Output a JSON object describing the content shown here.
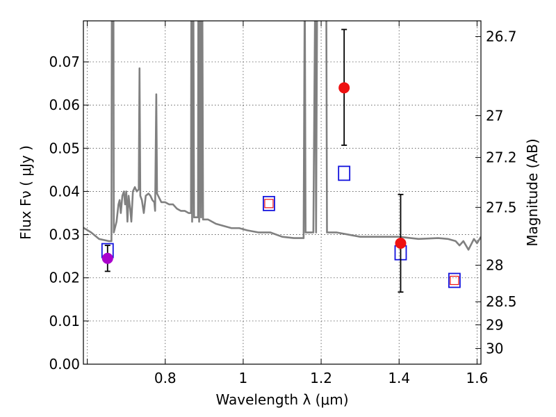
{
  "chart_data": {
    "type": "scatter",
    "xlabel": "Wavelength  λ (μm)",
    "ylabel": "Flux  Fν  ( μJy )",
    "ylabel_right": "Magnitude (AB)",
    "xlim": [
      0.59,
      1.61
    ],
    "ylim": [
      0.0,
      0.0795
    ],
    "grid": true,
    "x_ticks": [
      {
        "value": 0.6,
        "label": ""
      },
      {
        "value": 0.8,
        "label": "0.8"
      },
      {
        "value": 1.0,
        "label": "1"
      },
      {
        "value": 1.2,
        "label": "1.2"
      },
      {
        "value": 1.4,
        "label": "1.4"
      },
      {
        "value": 1.6,
        "label": "1.6"
      }
    ],
    "y_ticks": [
      {
        "value": 0.0,
        "label": "0.00"
      },
      {
        "value": 0.01,
        "label": "0.01"
      },
      {
        "value": 0.02,
        "label": "0.02"
      },
      {
        "value": 0.03,
        "label": "0.03"
      },
      {
        "value": 0.04,
        "label": "0.04"
      },
      {
        "value": 0.05,
        "label": "0.05"
      },
      {
        "value": 0.06,
        "label": "0.06"
      },
      {
        "value": 0.07,
        "label": "0.07"
      }
    ],
    "right_ticks": [
      {
        "mag": 26.7,
        "label": "26.7"
      },
      {
        "mag": 27.0,
        "label": "27"
      },
      {
        "mag": 27.2,
        "label": "27.2"
      },
      {
        "mag": 27.5,
        "label": "27.5"
      },
      {
        "mag": 28.0,
        "label": "28"
      },
      {
        "mag": 28.5,
        "label": "28.5"
      },
      {
        "mag": 29.0,
        "label": "29"
      },
      {
        "mag": 30.0,
        "label": "30"
      }
    ],
    "template_spectrum": {
      "color": "#808080",
      "points": [
        [
          0.59,
          0.0316
        ],
        [
          0.61,
          0.0305
        ],
        [
          0.63,
          0.029
        ],
        [
          0.655,
          0.0285
        ],
        [
          0.662,
          0.0285
        ],
        [
          0.663,
          0.09
        ],
        [
          0.667,
          0.09
        ],
        [
          0.668,
          0.0305
        ],
        [
          0.675,
          0.033
        ],
        [
          0.68,
          0.037
        ],
        [
          0.683,
          0.038
        ],
        [
          0.686,
          0.035
        ],
        [
          0.69,
          0.039
        ],
        [
          0.694,
          0.04
        ],
        [
          0.697,
          0.037
        ],
        [
          0.7,
          0.04
        ],
        [
          0.703,
          0.033
        ],
        [
          0.706,
          0.039
        ],
        [
          0.71,
          0.036
        ],
        [
          0.713,
          0.033
        ],
        [
          0.717,
          0.04
        ],
        [
          0.722,
          0.041
        ],
        [
          0.727,
          0.04
        ],
        [
          0.732,
          0.0405
        ],
        [
          0.734,
          0.0685
        ],
        [
          0.736,
          0.039
        ],
        [
          0.74,
          0.038
        ],
        [
          0.745,
          0.035
        ],
        [
          0.75,
          0.039
        ],
        [
          0.757,
          0.0395
        ],
        [
          0.762,
          0.039
        ],
        [
          0.767,
          0.038
        ],
        [
          0.772,
          0.0375
        ],
        [
          0.774,
          0.0355
        ],
        [
          0.777,
          0.0625
        ],
        [
          0.779,
          0.0395
        ],
        [
          0.79,
          0.0375
        ],
        [
          0.8,
          0.0375
        ],
        [
          0.81,
          0.037
        ],
        [
          0.82,
          0.037
        ],
        [
          0.83,
          0.036
        ],
        [
          0.84,
          0.0355
        ],
        [
          0.85,
          0.0355
        ],
        [
          0.86,
          0.035
        ],
        [
          0.866,
          0.035
        ],
        [
          0.867,
          0.09
        ],
        [
          0.869,
          0.033
        ],
        [
          0.872,
          0.09
        ],
        [
          0.874,
          0.034
        ],
        [
          0.884,
          0.034
        ],
        [
          0.885,
          0.09
        ],
        [
          0.887,
          0.033
        ],
        [
          0.89,
          0.09
        ],
        [
          0.892,
          0.034
        ],
        [
          0.895,
          0.09
        ],
        [
          0.897,
          0.0335
        ],
        [
          0.91,
          0.0335
        ],
        [
          0.93,
          0.0325
        ],
        [
          0.95,
          0.032
        ],
        [
          0.97,
          0.0315
        ],
        [
          0.99,
          0.0315
        ],
        [
          1.01,
          0.031
        ],
        [
          1.04,
          0.0305
        ],
        [
          1.07,
          0.0305
        ],
        [
          1.1,
          0.0295
        ],
        [
          1.13,
          0.0292
        ],
        [
          1.155,
          0.0292
        ],
        [
          1.158,
          0.09
        ],
        [
          1.16,
          0.0305
        ],
        [
          1.18,
          0.0305
        ],
        [
          1.185,
          0.09
        ],
        [
          1.187,
          0.0305
        ],
        [
          1.19,
          0.09
        ],
        [
          1.213,
          0.09
        ],
        [
          1.215,
          0.0305
        ],
        [
          1.24,
          0.0305
        ],
        [
          1.27,
          0.03
        ],
        [
          1.3,
          0.0295
        ],
        [
          1.35,
          0.0295
        ],
        [
          1.4,
          0.0295
        ],
        [
          1.45,
          0.029
        ],
        [
          1.5,
          0.0292
        ],
        [
          1.525,
          0.029
        ],
        [
          1.545,
          0.0285
        ],
        [
          1.555,
          0.0275
        ],
        [
          1.565,
          0.0285
        ],
        [
          1.578,
          0.0265
        ],
        [
          1.592,
          0.029
        ],
        [
          1.6,
          0.028
        ],
        [
          1.61,
          0.0295
        ]
      ]
    },
    "observed": [
      {
        "x": 0.652,
        "y": 0.0245,
        "yerr_low": 0.0215,
        "yerr_high": 0.0275,
        "color": "#aa00cc"
      },
      {
        "x": 1.259,
        "y": 0.064,
        "yerr_low": 0.0507,
        "yerr_high": 0.0775,
        "color": "#ee1111"
      },
      {
        "x": 1.404,
        "y": 0.028,
        "yerr_low": 0.0167,
        "yerr_high": 0.0393,
        "color": "#ee1111"
      }
    ],
    "model_blue_squares": [
      {
        "x": 0.652,
        "y": 0.0263,
        "color": "#1111dd"
      },
      {
        "x": 1.066,
        "y": 0.0372,
        "color": "#1111dd"
      },
      {
        "x": 1.259,
        "y": 0.0442,
        "color": "#1111dd"
      },
      {
        "x": 1.404,
        "y": 0.0258,
        "color": "#1111dd"
      },
      {
        "x": 1.542,
        "y": 0.0194,
        "color": "#1111dd"
      }
    ],
    "model_red_squares": [
      {
        "x": 1.066,
        "y": 0.0372,
        "color": "#ee1111"
      },
      {
        "x": 1.542,
        "y": 0.0194,
        "color": "#ee1111"
      }
    ]
  }
}
